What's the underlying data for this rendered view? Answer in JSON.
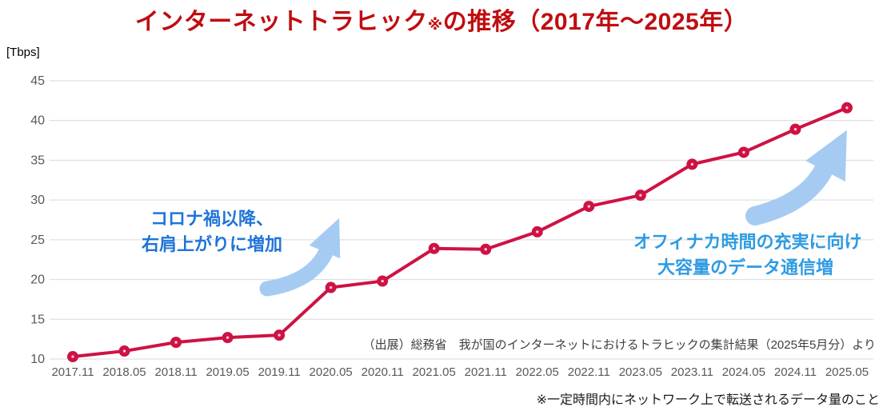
{
  "title": {
    "prefix": "インターネットトラヒック",
    "note_mark": "※",
    "suffix": "の推移（2017年～2025年）"
  },
  "y_axis": {
    "unit_label": "[Tbps]",
    "ticks": [
      45,
      40,
      35,
      30,
      25,
      20,
      15,
      10
    ]
  },
  "chart_data": {
    "type": "line",
    "title": "インターネットトラヒック※の推移（2017年～2025年）",
    "ylabel": "[Tbps]",
    "ylim": [
      10,
      45
    ],
    "grid": true,
    "legend": "none",
    "categories": [
      "2017.11",
      "2018.05",
      "2018.11",
      "2019.05",
      "2019.11",
      "2020.05",
      "2020.11",
      "2021.05",
      "2021.11",
      "2022.05",
      "2022.11",
      "2023.05",
      "2023.11",
      "2024.05",
      "2024.11",
      "2025.05"
    ],
    "values": [
      10.3,
      11.0,
      12.1,
      12.7,
      13.0,
      19.0,
      19.8,
      23.9,
      23.8,
      26.0,
      29.2,
      30.6,
      34.5,
      36.0,
      38.9,
      41.6
    ]
  },
  "annotations": {
    "left": {
      "line1": "コロナ禍以降、",
      "line2": "右肩上がりに増加"
    },
    "right": {
      "line1": "オフィナカ時間の充実に向け",
      "line2": "大容量のデータ通信増"
    }
  },
  "source_note": "（出展）総務省　我が国のインターネットにおけるトラヒックの集計結果（2025年5月分）より",
  "footnote": "※一定時間内にネットワーク上で転送されるデータ量のこと",
  "colors": {
    "title_red": "#C00D11",
    "line_red": "#CE1243",
    "marker_center": "#F6CBD4",
    "left_annotation_blue": "#1F75D8",
    "right_annotation_blue": "#2F9BE2",
    "arrow_blue": "#A5CBF3",
    "axis_text_gray": "#595959",
    "gridline_gray": "#D9D9D9",
    "source_text": "#3F3F3F",
    "footnote_text": "#1A1A1A"
  }
}
